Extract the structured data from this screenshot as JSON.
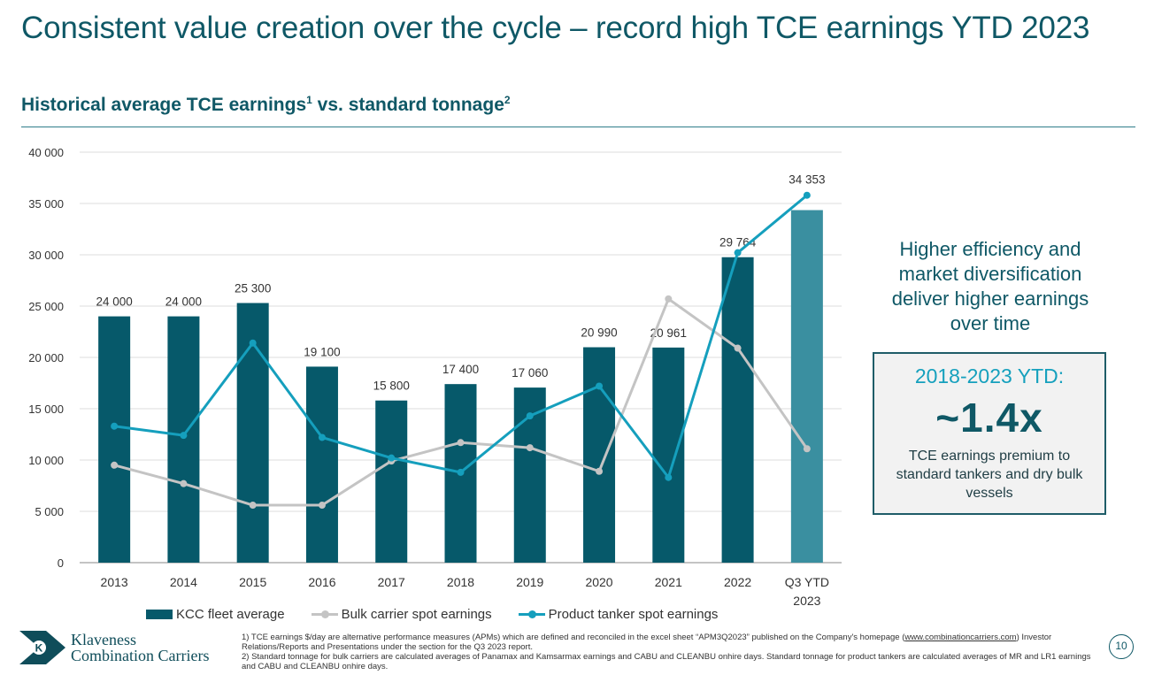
{
  "page": {
    "title": "Consistent value creation over the cycle – record high TCE earnings YTD 2023",
    "subtitle": "Historical average TCE earnings",
    "subtitle_sup1": "1",
    "subtitle_mid": " vs. standard tonnage",
    "subtitle_sup2": "2",
    "page_number": "10"
  },
  "callout": {
    "text": "Higher efficiency and market diversification deliver higher earnings over time"
  },
  "highlight_box": {
    "heading": "2018-2023 YTD:",
    "value": "~1.4x",
    "text": "TCE earnings premium to standard  tankers and dry bulk vessels"
  },
  "logo": {
    "line1": "Klaveness",
    "line2": "Combination Carriers"
  },
  "footnotes": {
    "note1_prefix": "1) TCE earnings $/day are alternative performance measures (APMs) which are defined and reconciled in the excel sheet “APM3Q2023” published on the Company's homepage (",
    "note1_link": "www.combinationcarriers.com",
    "note1_suffix": ") Investor Relations/Reports and Presentations under the section for the Q3 2023 report.",
    "note2": "2) Standard tonnage for bulk carriers are calculated averages of Panamax and Kamsarmax earnings and CABU and CLEANBU onhire days. Standard tonnage for product tankers are calculated averages of MR and LR1 earnings and CABU and CLEANBU onhire days."
  },
  "chart_data": {
    "type": "bar",
    "categories": [
      "2013",
      "2014",
      "2015",
      "2016",
      "2017",
      "2018",
      "2019",
      "2020",
      "2021",
      "2022",
      "Q3 YTD\n2023"
    ],
    "ylim": [
      0,
      40000
    ],
    "yticks": [
      0,
      5000,
      10000,
      15000,
      20000,
      25000,
      30000,
      35000,
      40000
    ],
    "ytick_labels": [
      "0",
      "5 000",
      "10 000",
      "15 000",
      "20 000",
      "25 000",
      "30 000",
      "35 000",
      "40 000"
    ],
    "grid": "horizontal",
    "legend_position": "bottom",
    "series": [
      {
        "name": "KCC fleet average",
        "type": "bar",
        "color": "#06596a",
        "highlight_color": "#3a8fa0",
        "values": [
          24000,
          24000,
          25300,
          19100,
          15800,
          17400,
          17060,
          20990,
          20961,
          29764,
          34353
        ],
        "labels": [
          "24 000",
          "24 000",
          "25 300",
          "19 100",
          "15 800",
          "17 400",
          "17 060",
          "20 990",
          "20 961",
          "29 764",
          "34 353"
        ]
      },
      {
        "name": "Bulk carrier spot earnings",
        "type": "line",
        "color": "#c4c4c4",
        "values": [
          9500,
          7700,
          5600,
          5600,
          9900,
          11700,
          11200,
          8900,
          25700,
          20900,
          11100
        ]
      },
      {
        "name": "Product tanker spot earnings",
        "type": "line",
        "color": "#159fbd",
        "values": [
          13300,
          12400,
          21400,
          12200,
          10200,
          8800,
          14300,
          17200,
          8300,
          30200,
          35800
        ]
      }
    ]
  }
}
